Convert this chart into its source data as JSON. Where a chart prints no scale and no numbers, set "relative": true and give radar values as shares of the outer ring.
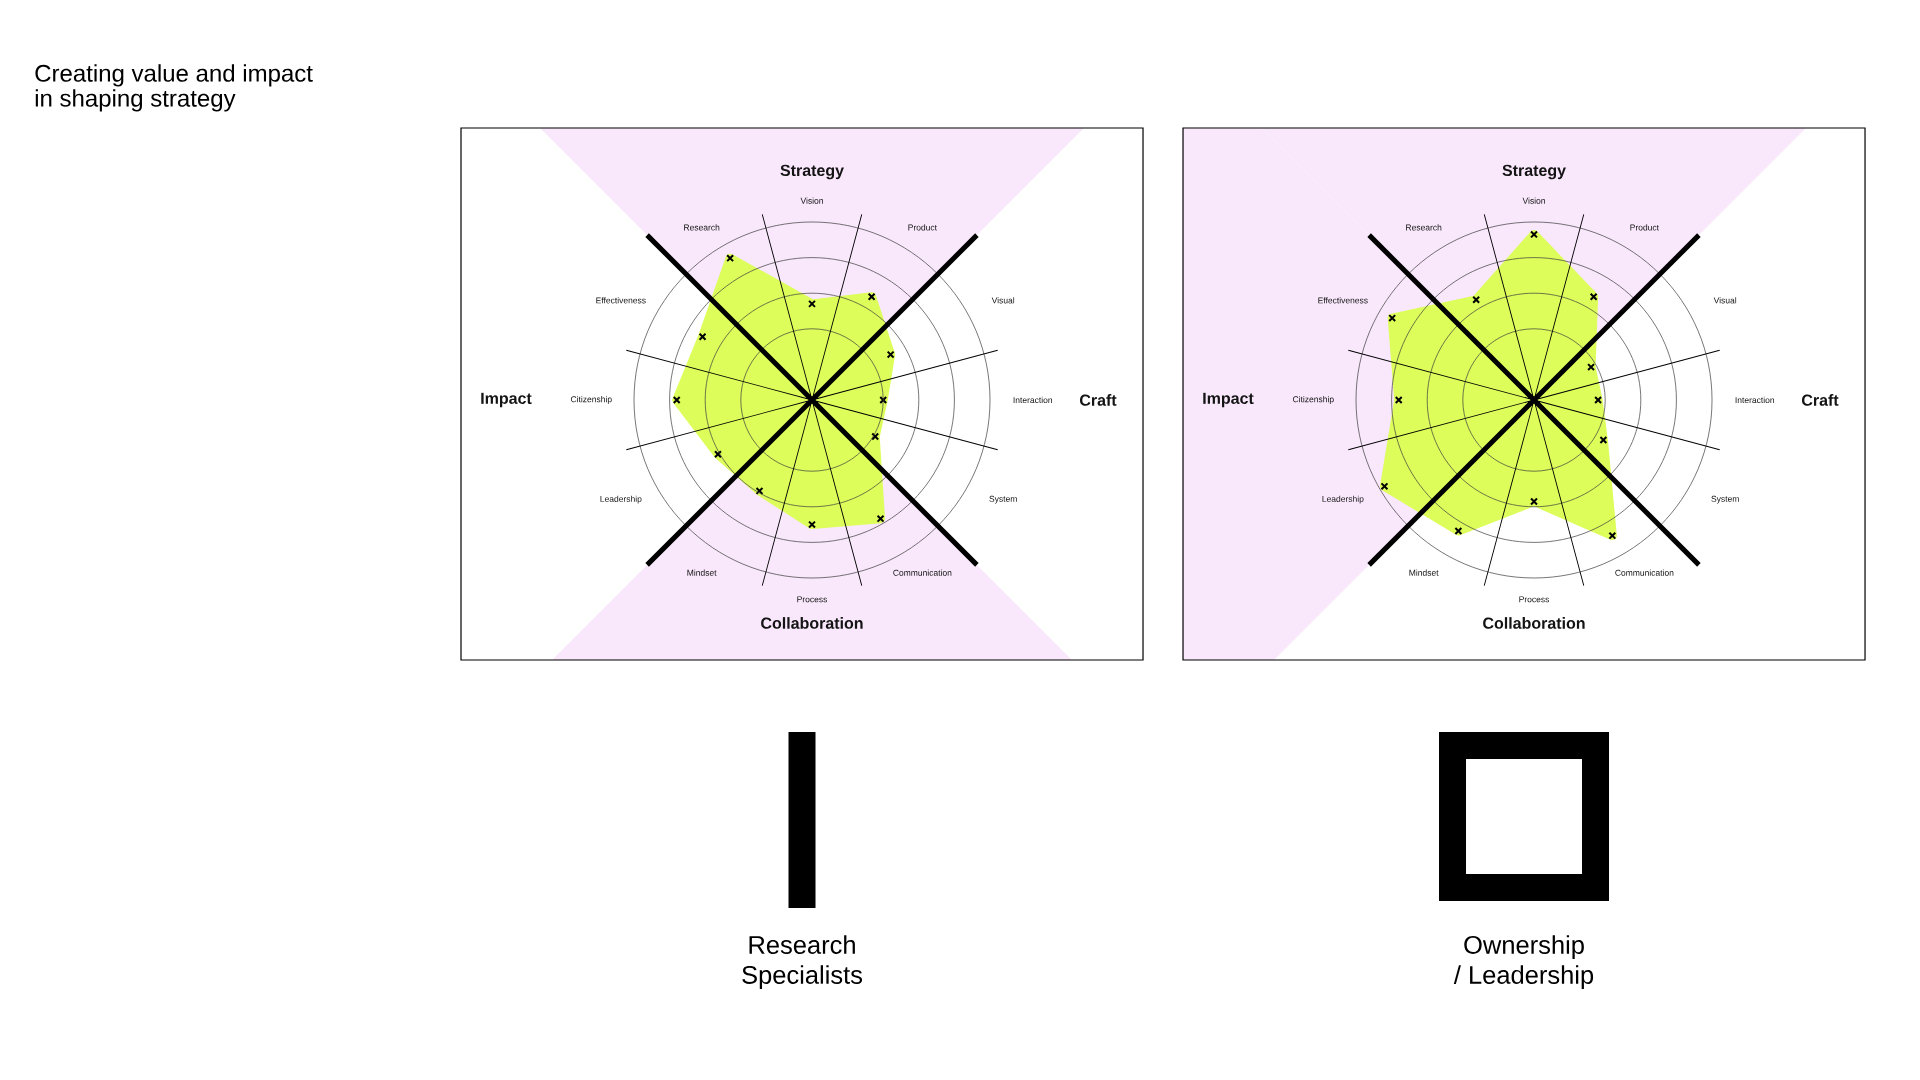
{
  "chart_data": [
    {
      "type": "radar",
      "title": "Creating value and impact in shaping strategy",
      "relative": true,
      "grid": true,
      "marker": "cross",
      "categories": [
        "Vision",
        "Product",
        "Visual",
        "Interaction",
        "System",
        "Communication",
        "Process",
        "Mindset",
        "Leadership",
        "Citizenship",
        "Effectiveness",
        "Research"
      ],
      "series": [
        {
          "color": "#dcfd5a",
          "values": [
            0.54,
            0.67,
            0.51,
            0.4,
            0.41,
            0.77,
            0.7,
            0.59,
            0.61,
            0.76,
            0.71,
            0.92
          ]
        }
      ],
      "bands": [
        {
          "axis": "x",
          "label": "Strategy",
          "color": "#f9e7fb"
        },
        {
          "axis": "x",
          "label": "Craft"
        },
        {
          "axis": "x",
          "label": "Collaboration",
          "color": "#f9e7fb"
        },
        {
          "axis": "x",
          "label": "Impact"
        }
      ],
      "annotations": [
        "Research Specialists"
      ]
    },
    {
      "type": "radar",
      "relative": true,
      "grid": true,
      "marker": "cross",
      "categories": [
        "Vision",
        "Product",
        "Visual",
        "Interaction",
        "System",
        "Communication",
        "Process",
        "Mindset",
        "Leadership",
        "Citizenship",
        "Effectiveness",
        "Research"
      ],
      "series": [
        {
          "color": "#dcfd5a",
          "values": [
            0.93,
            0.67,
            0.37,
            0.36,
            0.45,
            0.88,
            0.57,
            0.85,
            0.97,
            0.76,
            0.92,
            0.65
          ]
        }
      ],
      "bands": [
        {
          "axis": "x",
          "label": "Strategy",
          "color": "#f9e7fb"
        },
        {
          "axis": "x",
          "label": "Craft"
        },
        {
          "axis": "x",
          "label": "Collaboration"
        },
        {
          "axis": "x",
          "label": "Impact",
          "color": "#f9e7fb"
        }
      ],
      "annotations": [
        "Ownership / Leadership"
      ]
    }
  ]
}
